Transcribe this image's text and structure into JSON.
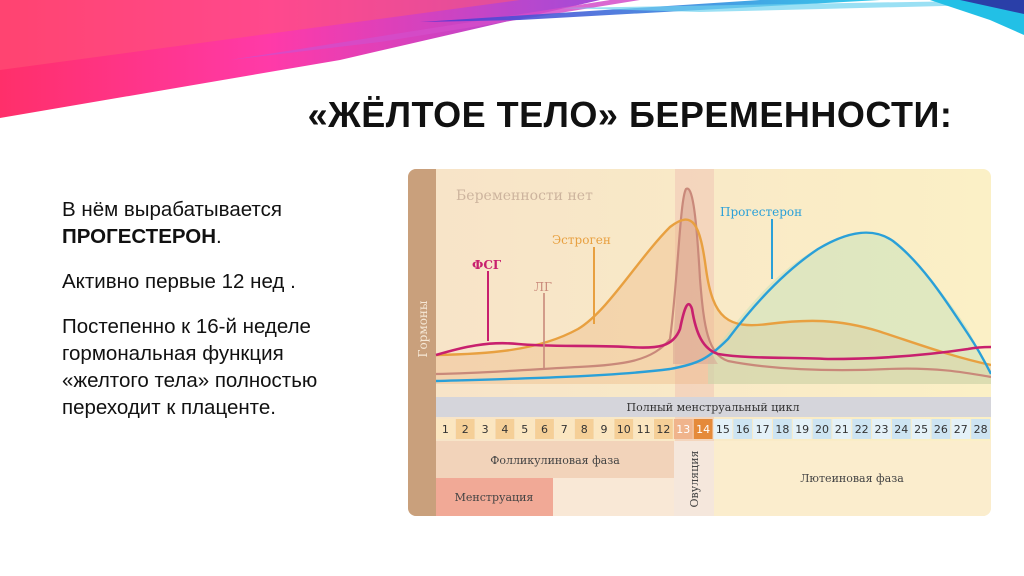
{
  "slide": {
    "title": "«ЖЁЛТОЕ ТЕЛО» БЕРЕМЕННОСТИ:",
    "paragraphs": [
      {
        "pre": "В нём вырабатывается ",
        "strong": "ПРОГЕСТЕРОН",
        "post": "."
      },
      {
        "text": "Активно первые 12 нед ."
      },
      {
        "text": "Постепенно к 16-й неделе гормональная функция «желтого тела» полностью переходит к плаценте."
      }
    ]
  },
  "colors": {
    "fsh": "#c8206e",
    "lh": "#c9897a",
    "estrogen": "#e8a040",
    "progesterone": "#2aa0d8",
    "axis_band": "#c9a07c",
    "chart_bg": "#f8eccd"
  },
  "chart_data": {
    "type": "line",
    "yaxis_label": "Гормоны",
    "annotation": "Беременности нет",
    "series_labels": {
      "fsh": "ФСГ",
      "lh": "ЛГ",
      "estrogen": "Эстроген",
      "progesterone": "Прогестерон"
    },
    "cycle_label": "Полный менструальный цикл",
    "days": [
      "1",
      "2",
      "3",
      "4",
      "5",
      "6",
      "7",
      "8",
      "9",
      "10",
      "11",
      "12",
      "13",
      "14",
      "15",
      "16",
      "17",
      "18",
      "19",
      "20",
      "21",
      "22",
      "23",
      "24",
      "25",
      "26",
      "27",
      "28"
    ],
    "phases": {
      "follicular": "Фолликулиновая фаза",
      "ovulation": "Овуляция",
      "luteal": "Лютеиновая фаза",
      "menstruation": "Менструация"
    }
  }
}
